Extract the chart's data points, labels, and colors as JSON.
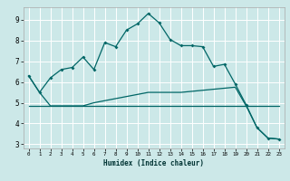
{
  "title": "",
  "xlabel": "Humidex (Indice chaleur)",
  "background_color": "#cce8e8",
  "grid_color": "#ffffff",
  "line_color": "#006666",
  "xlim": [
    -0.5,
    23.5
  ],
  "ylim": [
    2.8,
    9.6
  ],
  "yticks": [
    3,
    4,
    5,
    6,
    7,
    8,
    9
  ],
  "xticks": [
    0,
    1,
    2,
    3,
    4,
    5,
    6,
    7,
    8,
    9,
    10,
    11,
    12,
    13,
    14,
    15,
    16,
    17,
    18,
    19,
    20,
    21,
    22,
    23
  ],
  "series1_x": [
    0,
    1,
    2,
    3,
    4,
    5,
    6,
    7,
    8,
    9,
    10,
    11,
    12,
    13,
    14,
    15,
    16,
    17,
    18,
    19,
    20,
    21,
    22,
    23
  ],
  "series1_y": [
    6.3,
    5.5,
    6.2,
    6.6,
    6.7,
    7.2,
    6.6,
    7.9,
    7.7,
    8.5,
    8.8,
    9.3,
    8.85,
    8.05,
    7.75,
    7.75,
    7.7,
    6.75,
    6.85,
    5.9,
    4.9,
    3.8,
    3.3,
    3.25
  ],
  "series2_x": [
    0,
    1,
    2,
    3,
    4,
    5,
    6,
    7,
    8,
    9,
    10,
    11,
    12,
    13,
    14,
    15,
    16,
    17,
    18,
    19,
    20,
    21,
    22,
    23
  ],
  "series2_y": [
    6.3,
    5.5,
    4.85,
    4.85,
    4.85,
    4.85,
    5.0,
    5.1,
    5.2,
    5.3,
    5.4,
    5.5,
    5.5,
    5.5,
    5.5,
    5.55,
    5.6,
    5.65,
    5.7,
    5.75,
    4.85,
    3.8,
    3.3,
    3.25
  ],
  "series3_x": [
    0,
    1,
    2,
    3,
    4,
    5,
    6,
    7,
    8,
    9,
    10,
    11,
    12,
    13,
    14,
    15,
    16,
    17,
    18,
    19,
    20,
    21,
    22,
    23
  ],
  "series3_y": [
    4.85,
    4.85,
    4.85,
    4.85,
    4.85,
    4.85,
    4.85,
    4.85,
    4.85,
    4.85,
    4.85,
    4.85,
    4.85,
    4.85,
    4.85,
    4.85,
    4.85,
    4.85,
    4.85,
    4.85,
    4.85,
    4.85,
    4.85,
    4.85
  ]
}
